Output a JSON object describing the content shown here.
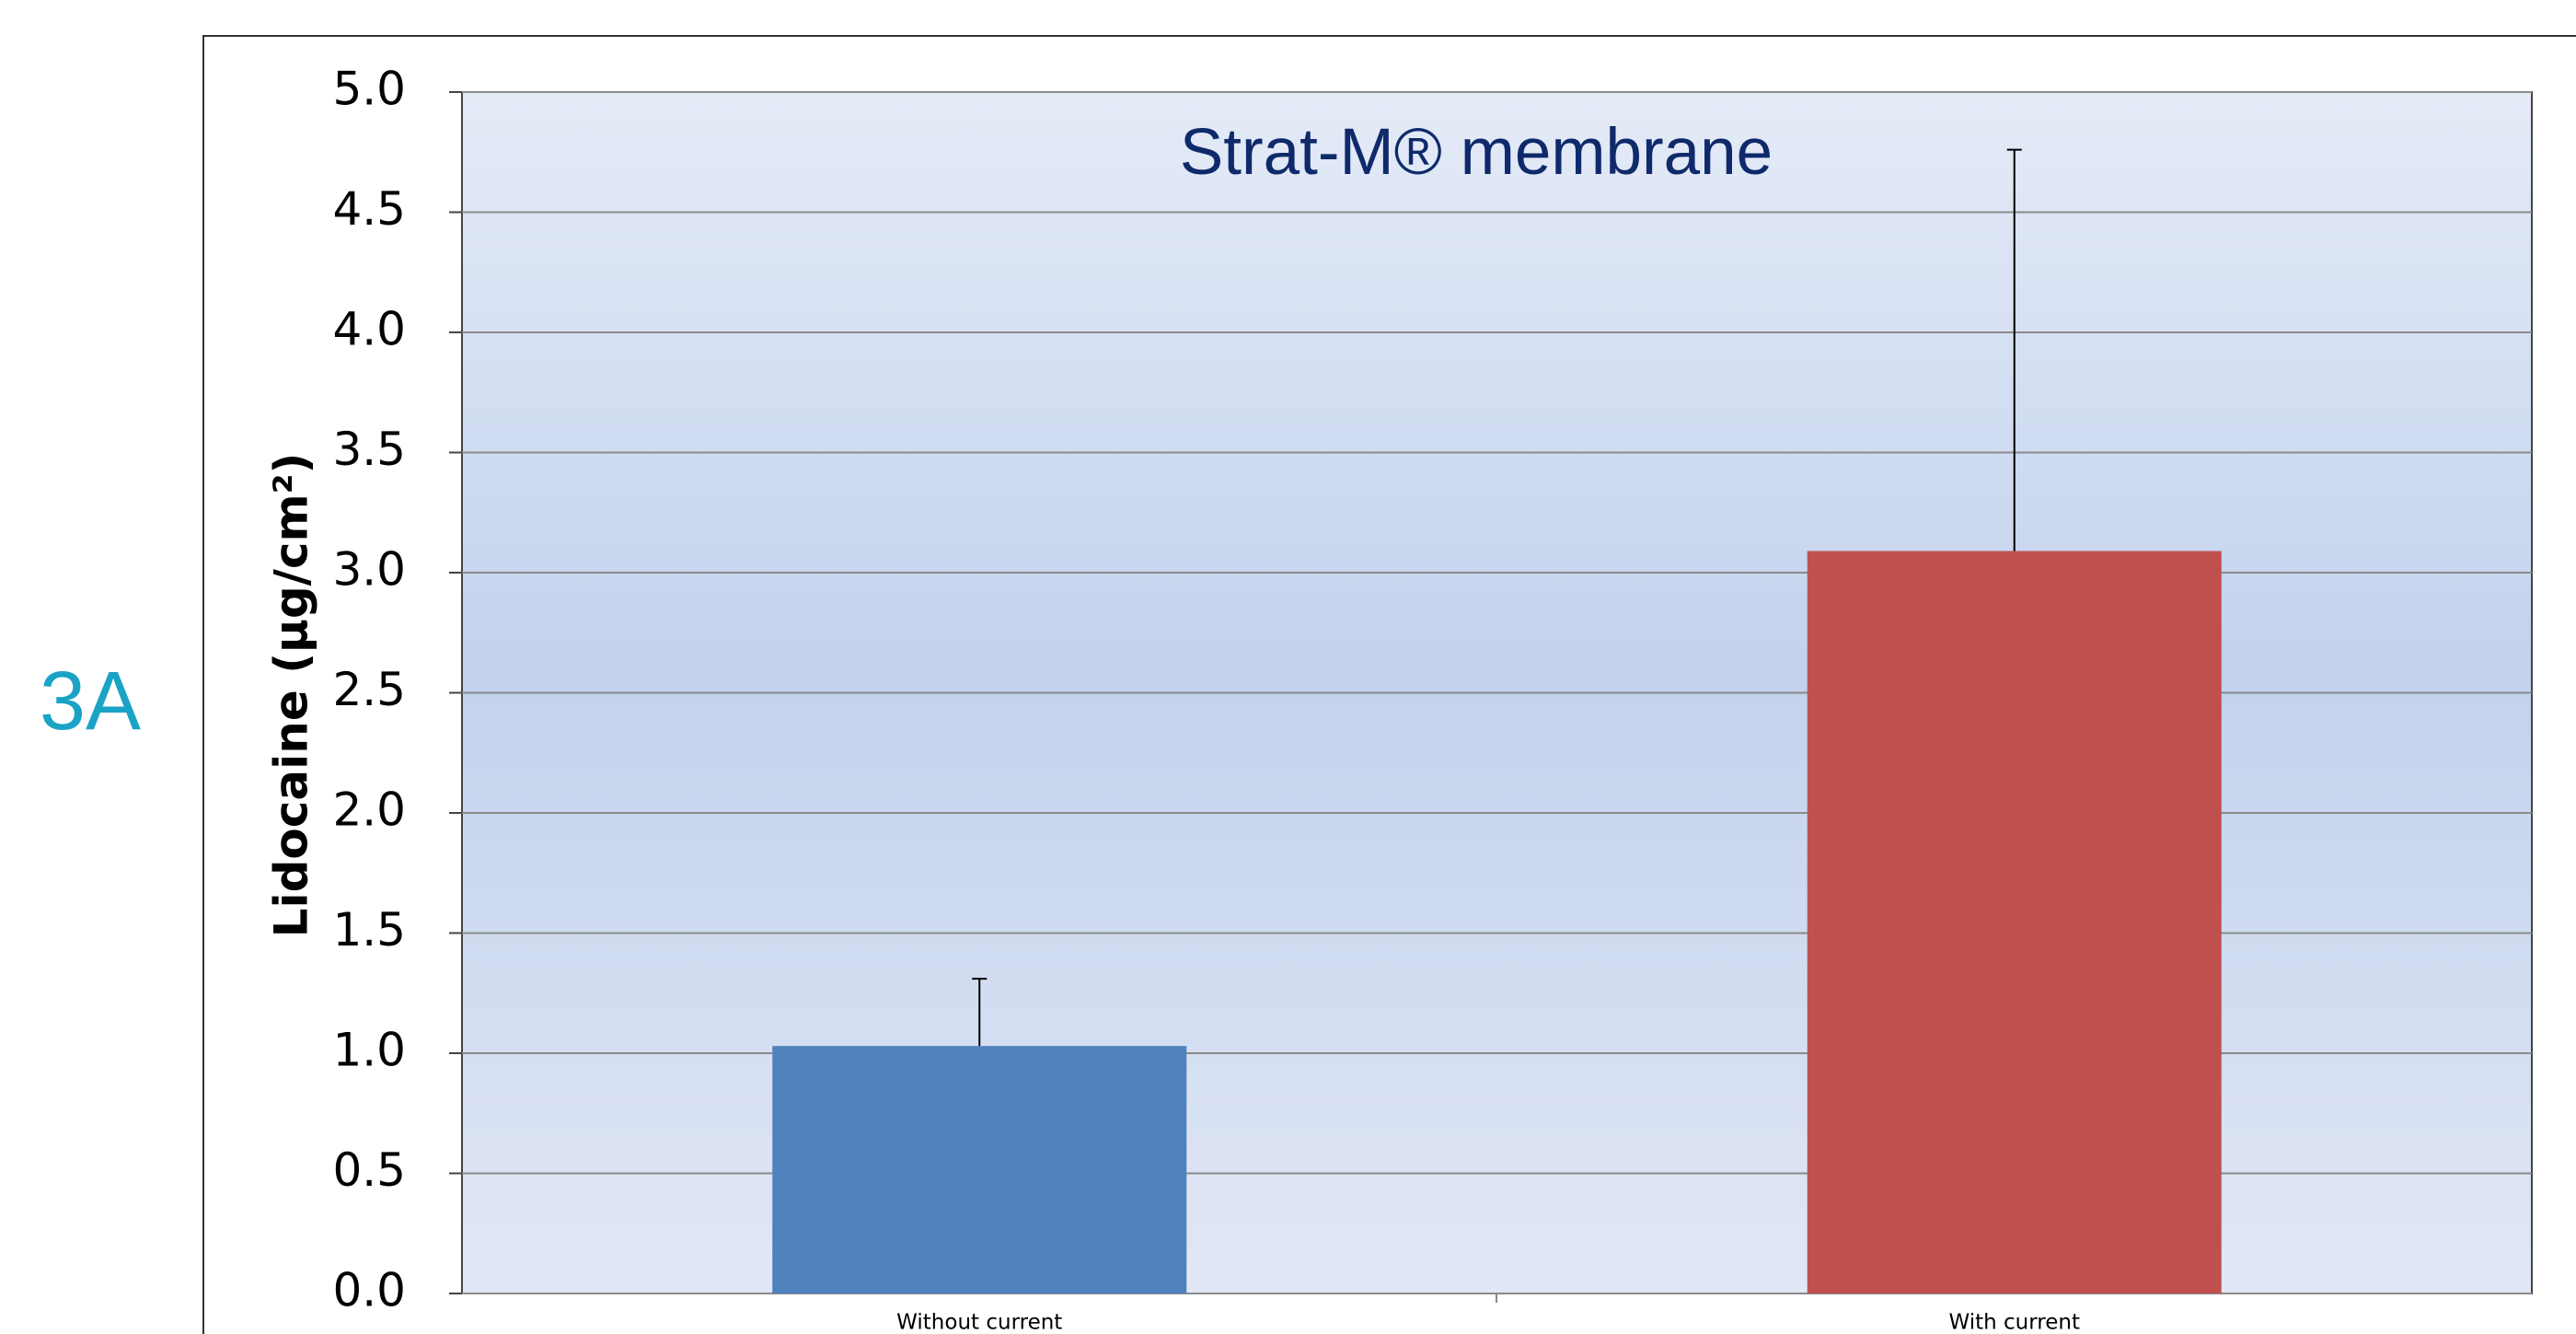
{
  "chart_data": {
    "type": "bar",
    "title": "Strat-M® membrane",
    "panel_label": "3A",
    "ylabel": "Lidocaine (µg/cm²)",
    "categories": [
      "Without current",
      "With current"
    ],
    "values": [
      1.03,
      3.09
    ],
    "errors": [
      0.28,
      1.67
    ],
    "colors": [
      "#4f81bd",
      "#c0504d"
    ],
    "ylim": [
      0,
      5
    ],
    "yticks": [
      {
        "value": 0,
        "label": "0.0"
      },
      0.5,
      {
        "value": 1,
        "label": "1.0"
      },
      1.5,
      {
        "value": 2,
        "label": "2.0"
      },
      2.5,
      {
        "value": 3,
        "label": "3.0"
      },
      3.5,
      {
        "value": 4,
        "label": "4.0"
      },
      4.5,
      {
        "value": 5,
        "label": "5.0"
      }
    ],
    "grid": true
  }
}
